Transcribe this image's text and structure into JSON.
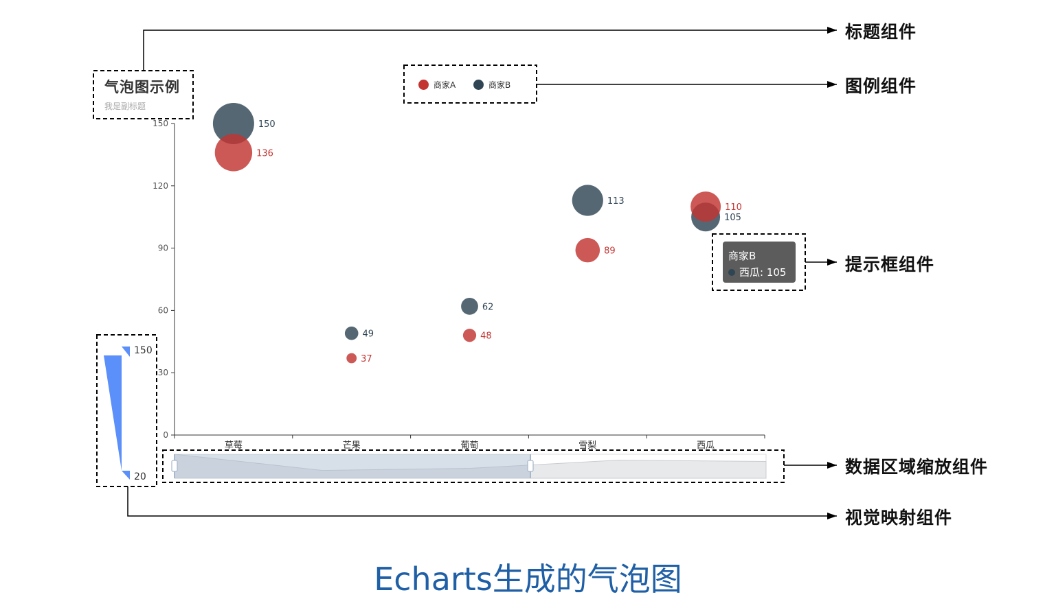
{
  "title": {
    "text": "气泡图示例",
    "subtext": "我是副标题"
  },
  "legend": {
    "items": [
      {
        "name": "商家A",
        "color": "#c23531"
      },
      {
        "name": "商家B",
        "color": "#2f4554"
      }
    ]
  },
  "chart_data": {
    "type": "scatter",
    "categories": [
      "草莓",
      "芒果",
      "葡萄",
      "雪梨",
      "西瓜"
    ],
    "yticks": [
      0,
      30,
      60,
      90,
      120,
      150
    ],
    "ylim": [
      0,
      150
    ],
    "series": [
      {
        "name": "商家A",
        "color": "#c23531",
        "values": [
          136,
          37,
          48,
          89,
          110
        ]
      },
      {
        "name": "商家B",
        "color": "#2f4554",
        "values": [
          150,
          49,
          62,
          113,
          105
        ]
      }
    ]
  },
  "visual_map": {
    "max": 150,
    "min": 20,
    "color": "#5b8ff9"
  },
  "tooltip": {
    "series": "商家B",
    "category": "西瓜",
    "value": 105,
    "color": "#2f4554"
  },
  "callouts": {
    "title": "标题组件",
    "legend": "图例组件",
    "tooltip": "提示框组件",
    "datazoom": "数据区域缩放组件",
    "visualmap": "视觉映射组件"
  },
  "caption": "Echarts生成的气泡图"
}
